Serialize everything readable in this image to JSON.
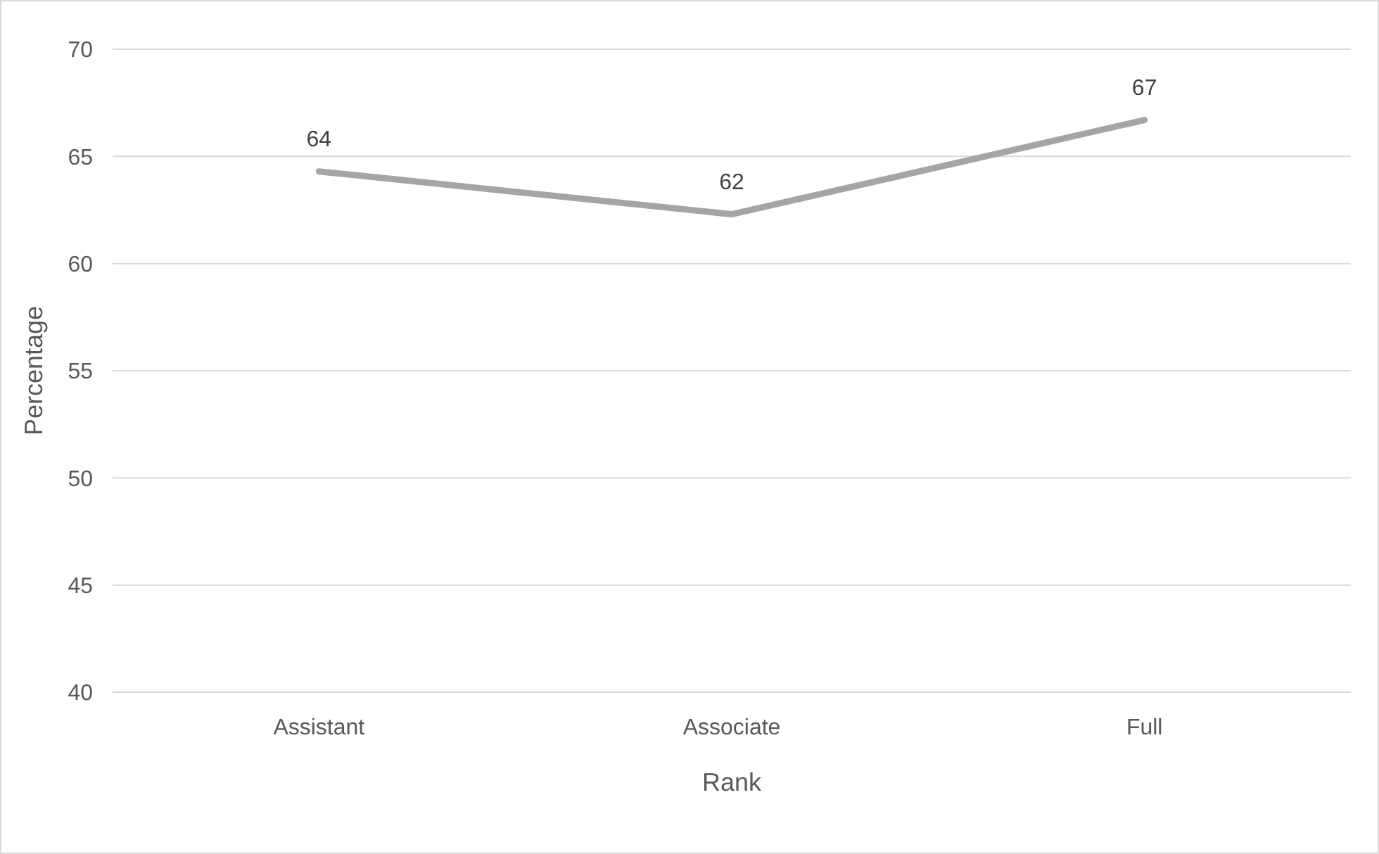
{
  "chart_data": {
    "type": "line",
    "xlabel": "Rank",
    "ylabel": "Percentage",
    "categories": [
      "Assistant",
      "Associate",
      "Full"
    ],
    "series": [
      {
        "color": "#a5a5a5",
        "values": [
          64.3,
          62.3,
          66.7
        ],
        "value_labels": [
          "64",
          "62",
          "67"
        ]
      }
    ],
    "ylim": [
      40,
      70
    ],
    "yticks": [
      40,
      45,
      50,
      55,
      60,
      65,
      70
    ],
    "grid": "y",
    "marker": "none",
    "line_style": "solid"
  }
}
